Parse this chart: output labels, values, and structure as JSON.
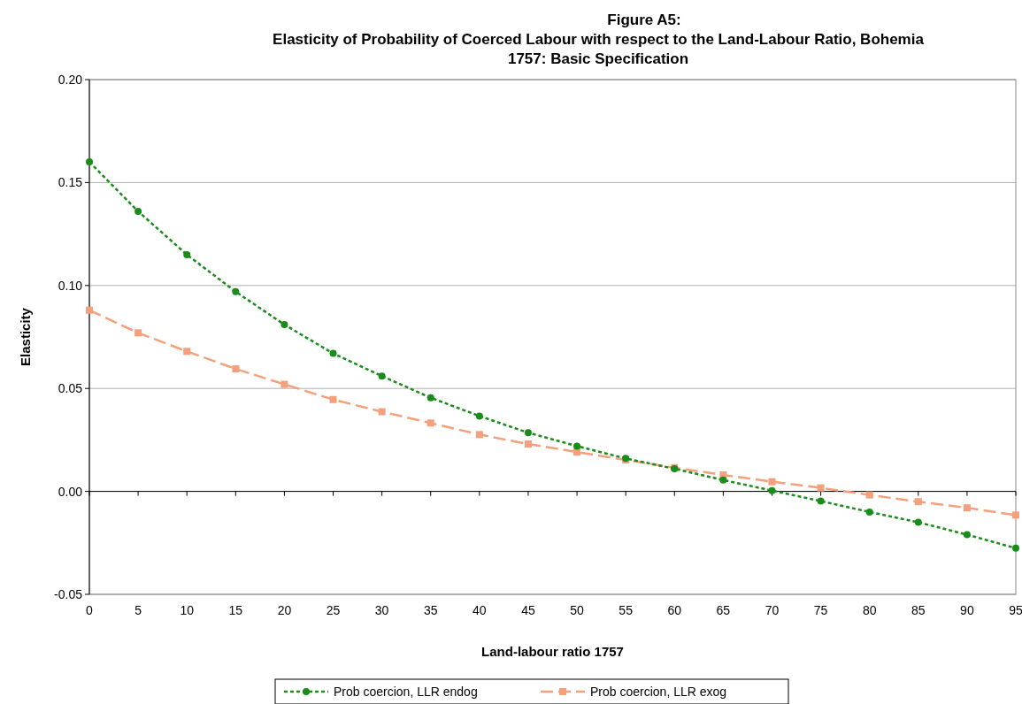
{
  "chart_data": {
    "type": "line",
    "title": "Figure A5:\nElasticity of Probability of Coerced Labour with respect to the Land-Labour Ratio, Bohemia\n1757: Basic Specification",
    "xlabel": "Land-labour ratio 1757",
    "ylabel": "Elasticity",
    "x": [
      0,
      5,
      10,
      15,
      20,
      25,
      30,
      35,
      40,
      45,
      50,
      55,
      60,
      65,
      70,
      75,
      80,
      85,
      90,
      95
    ],
    "xlim": [
      0,
      95
    ],
    "xticks": [
      0,
      5,
      10,
      15,
      20,
      25,
      30,
      35,
      40,
      45,
      50,
      55,
      60,
      65,
      70,
      75,
      80,
      85,
      90,
      95
    ],
    "ylim": [
      -0.05,
      0.2
    ],
    "yticks": [
      {
        "value": -0.05,
        "label": "-0.05"
      },
      {
        "value": 0,
        "label": "0.00"
      },
      {
        "value": 0.05,
        "label": "0.05"
      },
      {
        "value": 0.1,
        "label": "0.10"
      },
      {
        "value": 0.15,
        "label": "0.15"
      },
      {
        "value": 0.2,
        "label": "0.20"
      }
    ],
    "grid": "y",
    "legend": "bottom",
    "series": [
      {
        "name": "Prob coercion, LLR endog",
        "color": "#1a8c1a",
        "marker": "circle",
        "line_style": "dotted",
        "values": [
          0.16,
          0.136,
          0.115,
          0.097,
          0.081,
          0.067,
          0.056,
          0.0455,
          0.0366,
          0.0285,
          0.022,
          0.016,
          0.011,
          0.0055,
          0.0004,
          -0.0047,
          -0.01,
          -0.015,
          -0.021,
          -0.0276
        ]
      },
      {
        "name": "Prob coercion, LLR exog",
        "color": "#f4a07c",
        "marker": "square",
        "line_style": "dashed",
        "values": [
          0.088,
          0.077,
          0.068,
          0.0595,
          0.052,
          0.0446,
          0.0387,
          0.0332,
          0.0276,
          0.023,
          0.0191,
          0.0153,
          0.0115,
          0.008,
          0.0047,
          0.0017,
          -0.0017,
          -0.005,
          -0.008,
          -0.0115
        ]
      }
    ]
  }
}
